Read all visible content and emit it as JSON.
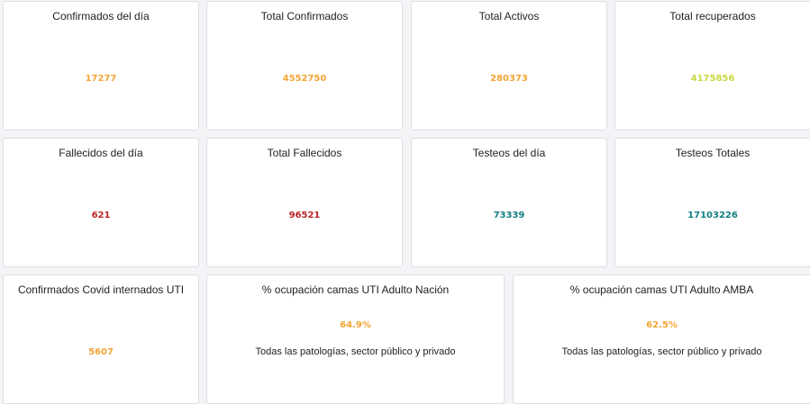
{
  "row1": [
    {
      "label": "Confirmados del día",
      "value": "17277",
      "color": "#f3a534"
    },
    {
      "label": "Total Confirmados",
      "value": "4552750",
      "color": "#f3a534"
    },
    {
      "label": "Total Activos",
      "value": "280373",
      "color": "#f3a534"
    },
    {
      "label": "Total recuperados",
      "value": "4175856",
      "color": "#c8d93f"
    }
  ],
  "row2": [
    {
      "label": "Fallecidos del día",
      "value": "621",
      "color": "#bb2526"
    },
    {
      "label": "Total Fallecidos",
      "value": "96521",
      "color": "#bb2526"
    },
    {
      "label": "Testeos del día",
      "value": "73339",
      "color": "#137f82"
    },
    {
      "label": "Testeos Totales",
      "value": "17103226",
      "color": "#137f82"
    }
  ],
  "row3": {
    "internados": {
      "label": "Confirmados Covid internados UTI",
      "value": "5607",
      "color": "#f3a534"
    },
    "nacion": {
      "label": "% ocupación camas UTI Adulto Nación",
      "value": "64.9%",
      "subtitle": "Todas las patologías, sector público y privado",
      "color": "#f3a534"
    },
    "amba": {
      "label": "% ocupación camas UTI Adulto AMBA",
      "value": "62.5%",
      "subtitle": "Todas las patologías, sector público y privado",
      "color": "#f3a534"
    }
  }
}
